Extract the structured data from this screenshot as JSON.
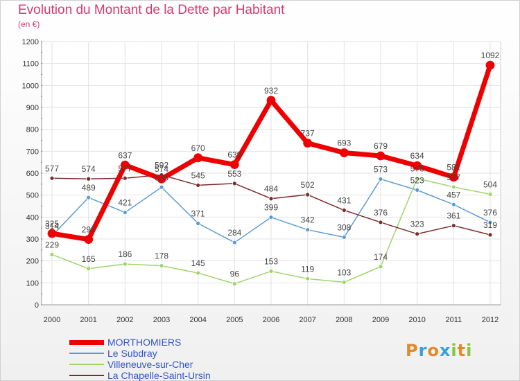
{
  "title": "Evolution du Montant de la Dette par Habitant",
  "subtitle": "(en €)",
  "logo": {
    "letters": [
      "P",
      "r",
      "o",
      "x",
      "i",
      "t",
      "i"
    ],
    "colors": [
      "#e08a2a",
      "#3aa0d8",
      "#e08a2a",
      "#3aa0d8",
      "#8ac43f",
      "#e08a2a",
      "#8ac43f"
    ]
  },
  "chart_data": {
    "type": "line",
    "x": [
      "2000",
      "2001",
      "2002",
      "2003",
      "2004",
      "2005",
      "2006",
      "2007",
      "2008",
      "2009",
      "2010",
      "2011",
      "2012"
    ],
    "ylim": [
      0,
      1200
    ],
    "yticks": [
      0,
      100,
      200,
      300,
      400,
      500,
      600,
      700,
      800,
      900,
      1000,
      1100,
      1200
    ],
    "grid": true,
    "legend_position": "bottom-left",
    "series": [
      {
        "name": "Le Subdray",
        "color": "#5b9bd5",
        "values": [
          314,
          489,
          421,
          536,
          371,
          284,
          399,
          342,
          308,
          573,
          523,
          457,
          376
        ],
        "labels": [
          "314",
          "489",
          "421",
          "536",
          "371",
          "284",
          "399",
          "342",
          "308",
          "573",
          "523",
          "457",
          "376"
        ]
      },
      {
        "name": "Villeneuve-sur-Cher",
        "color": "#9ed46a",
        "values": [
          229,
          165,
          186,
          178,
          145,
          96,
          153,
          119,
          103,
          174,
          576,
          537,
          504
        ],
        "labels": [
          "229",
          "165",
          "186",
          "178",
          "145",
          "96",
          "153",
          "119",
          "103",
          "174",
          "576",
          "537",
          "504"
        ]
      },
      {
        "name": "La Chapelle-Saint-Ursin",
        "color": "#7a2b2b",
        "values": [
          577,
          574,
          577,
          592,
          545,
          553,
          484,
          502,
          431,
          376,
          323,
          361,
          319
        ],
        "labels": [
          "577",
          "574",
          "577",
          "592",
          "545",
          "553",
          "484",
          "502",
          "431",
          "376",
          "323",
          "361",
          "319"
        ]
      },
      {
        "name": "MORTHOMIERS",
        "color": "#ee0000",
        "values": [
          325,
          298,
          637,
          574,
          670,
          639,
          932,
          737,
          693,
          679,
          634,
          582,
          1092
        ],
        "labels": [
          "325",
          "298",
          "637",
          "574",
          "670",
          "639",
          "932",
          "737",
          "693",
          "679",
          "634",
          "582",
          "1092"
        ]
      }
    ],
    "legend_order": [
      "MORTHOMIERS",
      "Le Subdray",
      "Villeneuve-sur-Cher",
      "La Chapelle-Saint-Ursin"
    ]
  }
}
